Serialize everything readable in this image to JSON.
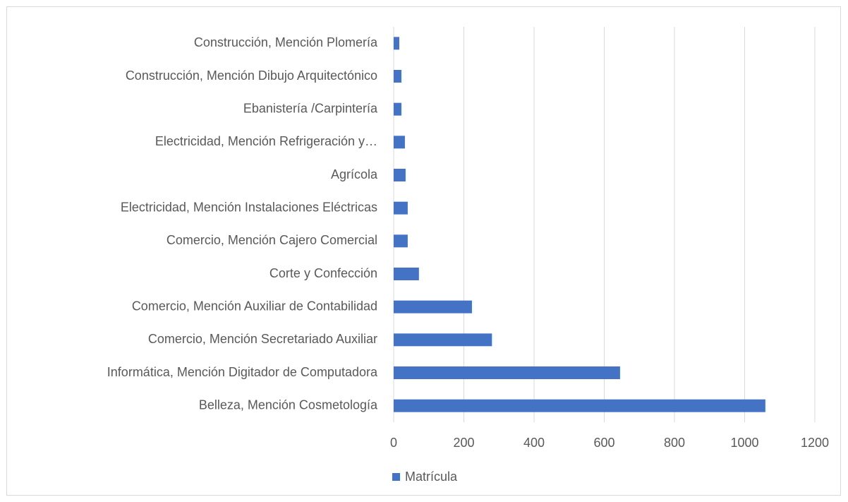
{
  "chart_data": {
    "type": "hbar",
    "categories": [
      "Construcción, Mención Plomería",
      "Construcción, Mención Dibujo Arquitectónico",
      "Ebanistería /Carpintería",
      "Electricidad, Mención Refrigeración y…",
      "Agrícola",
      "Electricidad, Mención Instalaciones Eléctricas",
      "Comercio, Mención Cajero Comercial",
      "Corte y Confección",
      "Comercio, Mención Auxiliar de Contabilidad",
      "Comercio, Mención Secretariado Auxiliar",
      "Informática, Mención Digitador de Computadora",
      "Belleza, Mención Cosmetología"
    ],
    "series": [
      {
        "name": "Matrícula",
        "color": "#4472c4",
        "values": [
          16,
          22,
          22,
          32,
          34,
          40,
          40,
          72,
          223,
          280,
          645,
          1059
        ]
      }
    ],
    "xlim": [
      0,
      1200
    ],
    "xticks": [
      0,
      200,
      400,
      600,
      800,
      1000,
      1200
    ],
    "grid": true,
    "legend": "bottom"
  }
}
